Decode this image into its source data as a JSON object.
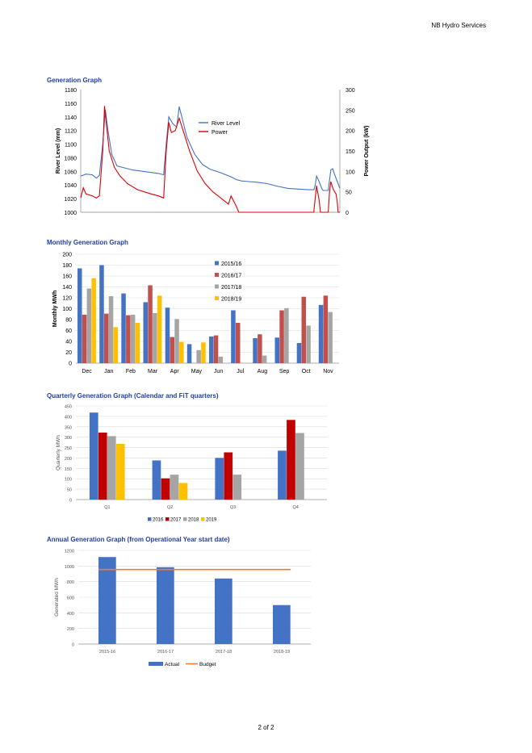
{
  "header": {
    "company": "NB Hydro Services"
  },
  "footer": {
    "page": "2 of 2"
  },
  "colors": {
    "blue": "#4472c4",
    "red": "#e00000",
    "darkred": "#c00000",
    "bar_red": "#c0504d",
    "gray": "#a5a5a5",
    "yellow": "#ffc000",
    "orange": "#ed7d31",
    "grid": "#d9d9d9"
  },
  "charts": {
    "generation": {
      "title": "Generation Graph",
      "chart_data": {
        "type": "line",
        "ylabel": "River Level (mm)",
        "y2label": "Power Output (kW)",
        "ylim": [
          1000,
          1180
        ],
        "y2lim": [
          0,
          300
        ],
        "yticks": [
          "1000",
          "1020",
          "1040",
          "1060",
          "1080",
          "1100",
          "1120",
          "1140",
          "1160",
          "1180"
        ],
        "y2ticks": [
          "0",
          "50",
          "100",
          "150",
          "200",
          "250",
          "300"
        ],
        "legend": [
          "River Level",
          "Power"
        ],
        "legend_position": "upper-middle",
        "grid": false,
        "series": [
          {
            "name": "River Level",
            "axis": "left",
            "points": [
              [
                0,
                1053
              ],
              [
                0.02,
                1056
              ],
              [
                0.045,
                1055
              ],
              [
                0.06,
                1050
              ],
              [
                0.072,
                1054
              ],
              [
                0.085,
                1100
              ],
              [
                0.095,
                1150
              ],
              [
                0.105,
                1120
              ],
              [
                0.12,
                1085
              ],
              [
                0.14,
                1068
              ],
              [
                0.17,
                1065
              ],
              [
                0.2,
                1062
              ],
              [
                0.24,
                1060
              ],
              [
                0.3,
                1057
              ],
              [
                0.32,
                1055
              ],
              [
                0.33,
                1100
              ],
              [
                0.34,
                1140
              ],
              [
                0.355,
                1130
              ],
              [
                0.37,
                1125
              ],
              [
                0.38,
                1155
              ],
              [
                0.39,
                1140
              ],
              [
                0.41,
                1110
              ],
              [
                0.44,
                1085
              ],
              [
                0.47,
                1070
              ],
              [
                0.5,
                1063
              ],
              [
                0.54,
                1058
              ],
              [
                0.58,
                1052
              ],
              [
                0.6,
                1048
              ],
              [
                0.62,
                1046
              ],
              [
                0.65,
                1045
              ],
              [
                0.68,
                1044
              ],
              [
                0.72,
                1042
              ],
              [
                0.76,
                1038
              ],
              [
                0.8,
                1035
              ],
              [
                0.84,
                1034
              ],
              [
                0.88,
                1033
              ],
              [
                0.9,
                1033
              ],
              [
                0.905,
                1040
              ],
              [
                0.91,
                1053
              ],
              [
                0.92,
                1045
              ],
              [
                0.93,
                1035
              ],
              [
                0.935,
                1032
              ],
              [
                0.955,
                1032
              ],
              [
                0.965,
                1062
              ],
              [
                0.972,
                1064
              ],
              [
                0.98,
                1055
              ],
              [
                0.99,
                1045
              ],
              [
                0.995,
                1040
              ],
              [
                1.0,
                1035
              ]
            ]
          },
          {
            "name": "Power",
            "axis": "right",
            "points": [
              [
                0,
                35
              ],
              [
                0.01,
                60
              ],
              [
                0.02,
                45
              ],
              [
                0.045,
                40
              ],
              [
                0.06,
                35
              ],
              [
                0.072,
                40
              ],
              [
                0.085,
                150
              ],
              [
                0.092,
                260
              ],
              [
                0.1,
                210
              ],
              [
                0.11,
                150
              ],
              [
                0.13,
                110
              ],
              [
                0.15,
                90
              ],
              [
                0.18,
                70
              ],
              [
                0.22,
                55
              ],
              [
                0.27,
                45
              ],
              [
                0.3,
                40
              ],
              [
                0.32,
                35
              ],
              [
                0.33,
                150
              ],
              [
                0.34,
                220
              ],
              [
                0.35,
                195
              ],
              [
                0.365,
                200
              ],
              [
                0.38,
                230
              ],
              [
                0.39,
                210
              ],
              [
                0.4,
                190
              ],
              [
                0.42,
                150
              ],
              [
                0.45,
                100
              ],
              [
                0.48,
                70
              ],
              [
                0.51,
                50
              ],
              [
                0.53,
                40
              ],
              [
                0.55,
                30
              ],
              [
                0.57,
                20
              ],
              [
                0.58,
                40
              ],
              [
                0.6,
                15
              ],
              [
                0.61,
                0
              ],
              [
                0.65,
                0
              ],
              [
                0.7,
                0
              ],
              [
                0.75,
                0
              ],
              [
                0.8,
                0
              ],
              [
                0.85,
                0
              ],
              [
                0.9,
                0
              ],
              [
                0.9,
                5
              ],
              [
                0.91,
                65
              ],
              [
                0.92,
                30
              ],
              [
                0.925,
                0
              ],
              [
                0.955,
                0
              ],
              [
                0.96,
                50
              ],
              [
                0.965,
                75
              ],
              [
                0.975,
                55
              ],
              [
                0.985,
                45
              ],
              [
                0.99,
                25
              ],
              [
                0.993,
                0
              ],
              [
                1.0,
                0
              ]
            ]
          }
        ]
      }
    },
    "monthly": {
      "title": "Monthly Generation Graph",
      "chart_data": {
        "type": "bar",
        "ylabel": "Monthly MWh",
        "ylim": [
          0,
          200
        ],
        "yticks": [
          "0",
          "20",
          "40",
          "60",
          "80",
          "100",
          "120",
          "140",
          "160",
          "180",
          "200"
        ],
        "categories": [
          "Dec",
          "Jan",
          "Feb",
          "Mar",
          "Apr",
          "May",
          "Jun",
          "Jul",
          "Aug",
          "Sep",
          "Oct",
          "Nov"
        ],
        "legend_position": "top-right",
        "grid": true,
        "series": [
          {
            "name": "2015/16",
            "values": [
              174,
              180,
              128,
              112,
              102,
              35,
              49,
              97,
              46,
              47,
              37,
              107
            ]
          },
          {
            "name": "2016/17",
            "values": [
              89,
              91,
              88,
              143,
              48,
              0,
              51,
              74,
              53,
              97,
              122,
              124
            ]
          },
          {
            "name": "2017/18",
            "values": [
              137,
              123,
              89,
              92,
              81,
              24,
              12,
              0,
              14,
              101,
              69,
              94
            ]
          },
          {
            "name": "2018/19",
            "values": [
              156,
              66,
              74,
              124,
              39,
              38,
              0,
              0,
              0,
              0,
              0,
              0
            ]
          }
        ]
      }
    },
    "quarterly": {
      "title": "Quarterly Generation Graph (Calendar and FiT quarters)",
      "chart_data": {
        "type": "bar",
        "ylabel": "Quarterly MWh",
        "ylim": [
          0,
          450
        ],
        "yticks": [
          "0",
          "50",
          "100",
          "150",
          "200",
          "250",
          "300",
          "350",
          "400",
          "450"
        ],
        "categories": [
          "Q1",
          "Q2",
          "Q3",
          "Q4"
        ],
        "legend_position": "bottom",
        "grid": true,
        "series": [
          {
            "name": "2016",
            "values": [
              418,
              188,
              200,
              235
            ]
          },
          {
            "name": "2017",
            "values": [
              322,
              102,
              227,
              383
            ]
          },
          {
            "name": "2018",
            "values": [
              305,
              120,
              120,
              320
            ]
          },
          {
            "name": "2019",
            "values": [
              268,
              80,
              0,
              0
            ]
          }
        ]
      }
    },
    "annual": {
      "title": "Annual Generation Graph (from Operational Year start date)",
      "chart_data": {
        "type": "bar",
        "ylabel": "Generated MWh",
        "ylim": [
          0,
          1200
        ],
        "yticks": [
          "0",
          "200",
          "400",
          "600",
          "800",
          "1000",
          "1200"
        ],
        "categories": [
          "2015-16",
          "2016-17",
          "2017-18",
          "2018-19"
        ],
        "legend_position": "bottom",
        "grid": true,
        "series": [
          {
            "name": "Actual",
            "values": [
              1115,
              985,
              840,
              500
            ]
          }
        ],
        "budget": {
          "name": "Budget",
          "value": 955
        }
      }
    }
  }
}
